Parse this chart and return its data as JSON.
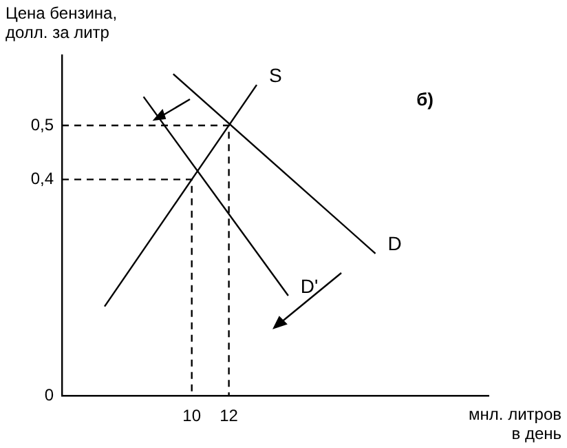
{
  "chart_data": {
    "type": "line",
    "ylabel": "Цена бензина, долл. за литр",
    "xlabel": "мнл. литров в день",
    "annotations": [
      "б)"
    ],
    "xlim": [
      3,
      26
    ],
    "xticks": [
      10,
      12
    ],
    "ylim": [
      0,
      0.63
    ],
    "yticks": [
      {
        "value": 0,
        "label": "0"
      },
      {
        "value": 0.4,
        "label": "0,4"
      },
      {
        "value": 0.5,
        "label": "0,5"
      }
    ],
    "grid": false,
    "legend": false,
    "marker": "none",
    "series": [
      {
        "name": "S",
        "color": "#000000",
        "x": [
          5.3,
          13.5
        ],
        "values": [
          0.165,
          0.575
        ]
      },
      {
        "name": "D",
        "color": "#000000",
        "x": [
          9,
          19.9
        ],
        "values": [
          0.595,
          0.263
        ]
      },
      {
        "name": "D'",
        "color": "#000000",
        "x": [
          7.4,
          15.2
        ],
        "values": [
          0.553,
          0.185
        ]
      },
      {
        "color": "#000000",
        "line_style": "dashed",
        "x": [
          3,
          12,
          12
        ],
        "values": [
          0.5,
          0.5,
          0
        ]
      },
      {
        "color": "#000000",
        "line_style": "dashed",
        "x": [
          3,
          10,
          10
        ],
        "values": [
          0.4,
          0.4,
          0
        ]
      }
    ]
  }
}
